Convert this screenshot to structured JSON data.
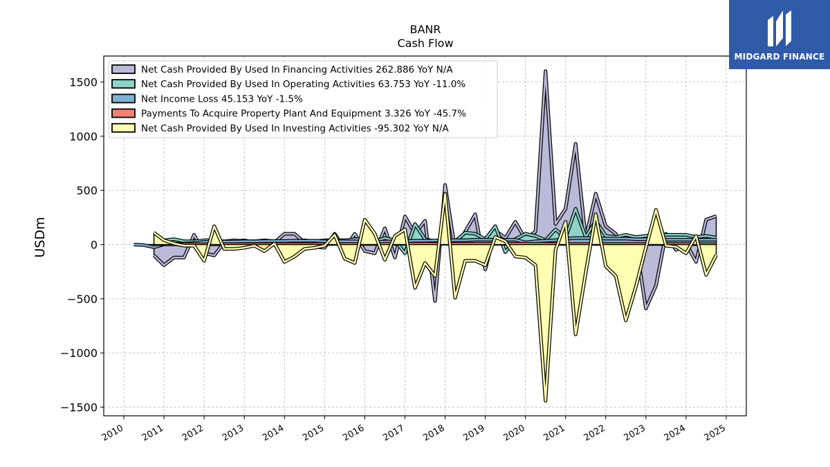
{
  "brand": {
    "name": "MIDGARD FINANCE",
    "color": "#2f5aa8",
    "icon": "midgard-logo-icon"
  },
  "chart_data": {
    "type": "line",
    "title": "BANR",
    "subtitle": "Cash Flow",
    "xlabel": "",
    "ylabel": "USDm",
    "xlim": [
      2009.5,
      2025.5
    ],
    "ylim": [
      -1580,
      1740
    ],
    "yticks": [
      -1500,
      -1000,
      -500,
      0,
      500,
      1000,
      1500
    ],
    "ytick_labels": [
      "−1500",
      "−1000",
      "−500",
      "0",
      "500",
      "1000",
      "1500"
    ],
    "xticks": [
      2010,
      2011,
      2012,
      2013,
      2014,
      2015,
      2016,
      2017,
      2018,
      2019,
      2020,
      2021,
      2022,
      2023,
      2024,
      2025
    ],
    "xtick_labels": [
      "2010",
      "2011",
      "2012",
      "2013",
      "2014",
      "2015",
      "2016",
      "2017",
      "2018",
      "2019",
      "2020",
      "2021",
      "2022",
      "2023",
      "2024",
      "2025"
    ],
    "grid": true,
    "legend_position": "top-left",
    "series": [
      {
        "name": "Net Cash Provided By Used In Financing Activities",
        "legend": "Net Cash Provided By Used In Financing Activities  262.886 YoY N/A",
        "color": "#bcbad9",
        "x": [
          2010.75,
          2011.0,
          2011.25,
          2011.5,
          2011.75,
          2012.0,
          2012.25,
          2012.5,
          2012.75,
          2013.0,
          2013.25,
          2013.5,
          2013.75,
          2014.0,
          2014.25,
          2014.5,
          2014.75,
          2015.0,
          2015.25,
          2015.5,
          2015.75,
          2016.0,
          2016.25,
          2016.5,
          2016.75,
          2017.0,
          2017.25,
          2017.5,
          2017.75,
          2018.0,
          2018.25,
          2018.5,
          2018.75,
          2019.0,
          2019.25,
          2019.5,
          2019.75,
          2020.0,
          2020.25,
          2020.5,
          2020.75,
          2021.0,
          2021.25,
          2021.5,
          2021.75,
          2022.0,
          2022.25,
          2022.5,
          2022.75,
          2023.0,
          2023.25,
          2023.5,
          2023.75,
          2024.0,
          2024.25,
          2024.5,
          2024.75
        ],
        "y": [
          -100,
          -190,
          -120,
          -120,
          90,
          -80,
          -100,
          20,
          30,
          40,
          20,
          -20,
          20,
          100,
          100,
          20,
          -20,
          -30,
          100,
          -40,
          100,
          -60,
          -80,
          150,
          -120,
          260,
          100,
          220,
          -520,
          550,
          -50,
          120,
          280,
          -230,
          130,
          60,
          210,
          50,
          120,
          1600,
          190,
          330,
          930,
          60,
          470,
          170,
          100,
          -200,
          20,
          -590,
          -380,
          100,
          -50,
          10,
          -160,
          230,
          262.886
        ]
      },
      {
        "name": "Net Cash Provided By Used In Operating Activities",
        "legend": "Net Cash Provided By Used In Operating Activities  63.753 YoY -11.0%",
        "color": "#8dd3c7",
        "x": [
          2010.75,
          2011.0,
          2011.25,
          2011.5,
          2011.75,
          2012.0,
          2012.25,
          2012.5,
          2012.75,
          2013.0,
          2013.25,
          2013.5,
          2013.75,
          2014.0,
          2014.25,
          2014.5,
          2014.75,
          2015.0,
          2015.25,
          2015.5,
          2015.75,
          2016.0,
          2016.25,
          2016.5,
          2016.75,
          2017.0,
          2017.25,
          2017.5,
          2017.75,
          2018.0,
          2018.25,
          2018.5,
          2018.75,
          2019.0,
          2019.25,
          2019.5,
          2019.75,
          2020.0,
          2020.25,
          2020.5,
          2020.75,
          2021.0,
          2021.25,
          2021.5,
          2021.75,
          2022.0,
          2022.25,
          2022.5,
          2022.75,
          2023.0,
          2023.25,
          2023.5,
          2023.75,
          2024.0,
          2024.25,
          2024.5,
          2024.75
        ],
        "y": [
          20,
          40,
          50,
          30,
          30,
          40,
          40,
          30,
          40,
          30,
          30,
          40,
          30,
          30,
          30,
          40,
          30,
          40,
          40,
          40,
          50,
          50,
          30,
          60,
          40,
          -80,
          190,
          50,
          30,
          40,
          30,
          110,
          100,
          50,
          170,
          -70,
          50,
          100,
          80,
          40,
          140,
          60,
          330,
          70,
          220,
          80,
          70,
          90,
          70,
          80,
          100,
          90,
          90,
          90,
          70,
          80,
          63.753
        ]
      },
      {
        "name": "Net Income Loss",
        "legend": "Net Income Loss  45.153 YoY -1.5%",
        "color": "#80b1d3",
        "x": [
          2010.25,
          2010.5,
          2010.75,
          2011.0,
          2011.25,
          2011.5,
          2011.75,
          2012.0,
          2012.25,
          2012.5,
          2012.75,
          2013.0,
          2013.25,
          2013.5,
          2013.75,
          2014.0,
          2014.25,
          2014.5,
          2014.75,
          2015.0,
          2015.25,
          2015.5,
          2015.75,
          2016.0,
          2016.25,
          2016.5,
          2016.75,
          2017.0,
          2017.25,
          2017.5,
          2017.75,
          2018.0,
          2018.25,
          2018.5,
          2018.75,
          2019.0,
          2019.25,
          2019.5,
          2019.75,
          2020.0,
          2020.25,
          2020.5,
          2020.75,
          2021.0,
          2021.25,
          2021.5,
          2021.75,
          2022.0,
          2022.25,
          2022.5,
          2022.75,
          2023.0,
          2023.25,
          2023.5,
          2023.75,
          2024.0,
          2024.25,
          2024.5,
          2024.75
        ],
        "y": [
          0,
          -5,
          -25,
          2,
          8,
          10,
          15,
          25,
          25,
          28,
          28,
          30,
          30,
          32,
          33,
          33,
          35,
          35,
          35,
          30,
          30,
          30,
          30,
          25,
          25,
          28,
          30,
          30,
          35,
          35,
          38,
          40,
          40,
          40,
          45,
          45,
          45,
          45,
          45,
          20,
          30,
          35,
          40,
          55,
          60,
          60,
          60,
          55,
          55,
          55,
          50,
          50,
          50,
          45,
          45,
          45,
          45,
          45,
          45.153
        ]
      },
      {
        "name": "Payments To Acquire Property Plant And Equipment",
        "legend": "Payments To Acquire Property Plant And Equipment  3.326 YoY -45.7%",
        "color": "#fb8072",
        "x": [
          2010.75,
          2011.0,
          2011.25,
          2011.5,
          2011.75,
          2012.0,
          2012.25,
          2012.5,
          2012.75,
          2013.0,
          2013.25,
          2013.5,
          2013.75,
          2014.0,
          2014.25,
          2014.5,
          2014.75,
          2015.0,
          2015.25,
          2015.5,
          2015.75,
          2016.0,
          2016.25,
          2016.5,
          2016.75,
          2017.0,
          2017.25,
          2017.5,
          2017.75,
          2018.0,
          2018.25,
          2018.5,
          2018.75,
          2019.0,
          2019.25,
          2019.5,
          2019.75,
          2020.0,
          2020.25,
          2020.5,
          2020.75,
          2021.0,
          2021.25,
          2021.5,
          2021.75,
          2022.0,
          2022.25,
          2022.5,
          2022.75,
          2023.0,
          2023.25,
          2023.5,
          2023.75,
          2024.0,
          2024.25,
          2024.5,
          2024.75
        ],
        "y": [
          3,
          3,
          3,
          4,
          4,
          3,
          3,
          4,
          4,
          4,
          4,
          5,
          5,
          5,
          5,
          5,
          5,
          6,
          6,
          6,
          6,
          6,
          6,
          7,
          7,
          7,
          7,
          7,
          7,
          7,
          7,
          7,
          7,
          7,
          7,
          7,
          7,
          7,
          7,
          7,
          6,
          6,
          6,
          6,
          6,
          6,
          6,
          6,
          6,
          6,
          6,
          6,
          6,
          6,
          4,
          4,
          3.326
        ]
      },
      {
        "name": "Net Cash Provided By Used In Investing Activities",
        "legend": "Net Cash Provided By Used In Investing Activities  -95.302 YoY N/A",
        "color": "#ffffb3",
        "x": [
          2010.75,
          2011.0,
          2011.25,
          2011.5,
          2011.75,
          2012.0,
          2012.25,
          2012.5,
          2012.75,
          2013.0,
          2013.25,
          2013.5,
          2013.75,
          2014.0,
          2014.25,
          2014.5,
          2014.75,
          2015.0,
          2015.25,
          2015.5,
          2015.75,
          2016.0,
          2016.25,
          2016.5,
          2016.75,
          2017.0,
          2017.25,
          2017.5,
          2017.75,
          2018.0,
          2018.25,
          2018.5,
          2018.75,
          2019.0,
          2019.25,
          2019.5,
          2019.75,
          2020.0,
          2020.25,
          2020.5,
          2020.75,
          2021.0,
          2021.25,
          2021.5,
          2021.75,
          2022.0,
          2022.25,
          2022.5,
          2022.75,
          2023.0,
          2023.25,
          2023.5,
          2023.75,
          2024.0,
          2024.25,
          2024.5,
          2024.75
        ],
        "y": [
          110,
          40,
          10,
          -10,
          -10,
          -150,
          170,
          -40,
          -40,
          -30,
          -10,
          -60,
          10,
          -160,
          -110,
          -40,
          -30,
          -10,
          90,
          -130,
          -170,
          230,
          100,
          -140,
          80,
          140,
          -400,
          -170,
          -290,
          470,
          -490,
          -150,
          -150,
          -190,
          70,
          30,
          -110,
          -120,
          -190,
          -1440,
          -50,
          210,
          -830,
          -260,
          280,
          -200,
          -290,
          -700,
          -390,
          -30,
          320,
          -10,
          -20,
          -80,
          80,
          -280,
          -95.302
        ]
      }
    ]
  }
}
